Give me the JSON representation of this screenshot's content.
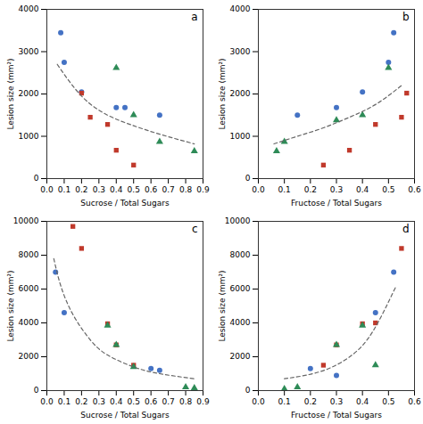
{
  "chart_data": [
    {
      "type": "scatter",
      "title": "a",
      "xlabel": "Sucrose / Total Sugars",
      "ylabel": "Lesion size (mm²)",
      "xlim": [
        0.0,
        0.9
      ],
      "ylim": [
        0,
        4000
      ],
      "xticks": [
        {
          "value": 0.0,
          "label": "0.0"
        },
        0.1,
        0.2,
        0.3,
        0.4,
        0.5,
        0.6,
        0.7,
        0.8,
        0.9
      ],
      "yticks": [
        0,
        1000,
        2000,
        3000,
        4000
      ],
      "grid": false,
      "series": [
        {
          "type": "scatter",
          "color": "#4472c4",
          "marker": "circle",
          "x": [
            0.08,
            0.1,
            0.2,
            0.4,
            0.45,
            0.65
          ],
          "values": [
            3450,
            2750,
            2050,
            1680,
            1680,
            1500
          ]
        },
        {
          "type": "scatter",
          "color": "#c0392b",
          "marker": "square",
          "x": [
            0.2,
            0.25,
            0.35,
            0.4,
            0.5
          ],
          "values": [
            2020,
            1450,
            1280,
            670,
            320
          ]
        },
        {
          "type": "scatter",
          "color": "#2e8b57",
          "marker": "triangle",
          "x": [
            0.4,
            0.5,
            0.65,
            0.85
          ],
          "values": [
            2620,
            1500,
            870,
            650
          ]
        },
        {
          "type": "line",
          "color": "#666666",
          "line_style": "dashed",
          "x": [
            0.06,
            0.2,
            0.35,
            0.5,
            0.65,
            0.85
          ],
          "values": [
            2700,
            1950,
            1500,
            1250,
            1050,
            820
          ]
        }
      ]
    },
    {
      "type": "scatter",
      "title": "b",
      "xlabel": "Fructose / Total Sugars",
      "ylabel": "Lesion size (mm²)",
      "xlim": [
        0.0,
        0.6
      ],
      "ylim": [
        0,
        4000
      ],
      "xticks": [
        {
          "value": 0.0,
          "label": "0.0"
        },
        0.1,
        0.2,
        0.3,
        0.4,
        0.5,
        0.6
      ],
      "yticks": [
        0,
        1000,
        2000,
        3000,
        4000
      ],
      "grid": false,
      "series": [
        {
          "type": "scatter",
          "color": "#4472c4",
          "marker": "circle",
          "x": [
            0.15,
            0.3,
            0.4,
            0.5,
            0.52
          ],
          "values": [
            1500,
            1680,
            2050,
            2750,
            3450
          ]
        },
        {
          "type": "scatter",
          "color": "#c0392b",
          "marker": "square",
          "x": [
            0.25,
            0.35,
            0.45,
            0.55,
            0.57
          ],
          "values": [
            320,
            670,
            1280,
            1450,
            2020
          ]
        },
        {
          "type": "scatter",
          "color": "#2e8b57",
          "marker": "triangle",
          "x": [
            0.07,
            0.1,
            0.3,
            0.4,
            0.5
          ],
          "values": [
            650,
            870,
            1380,
            1500,
            2620
          ]
        },
        {
          "type": "line",
          "color": "#666666",
          "line_style": "dashed",
          "x": [
            0.06,
            0.15,
            0.25,
            0.35,
            0.45,
            0.55
          ],
          "values": [
            820,
            1000,
            1200,
            1450,
            1750,
            2200
          ]
        }
      ]
    },
    {
      "type": "scatter",
      "title": "c",
      "xlabel": "Sucrose / Total Sugars",
      "ylabel": "Lesion size (mm²)",
      "xlim": [
        0.0,
        0.9
      ],
      "ylim": [
        0,
        10000
      ],
      "xticks": [
        {
          "value": 0.0,
          "label": "0.0"
        },
        0.1,
        0.2,
        0.3,
        0.4,
        0.5,
        0.6,
        0.7,
        0.8,
        0.9
      ],
      "yticks": [
        0,
        2000,
        4000,
        6000,
        8000,
        10000
      ],
      "grid": false,
      "series": [
        {
          "type": "scatter",
          "color": "#4472c4",
          "marker": "circle",
          "x": [
            0.05,
            0.1,
            0.6,
            0.65
          ],
          "values": [
            7000,
            4600,
            1300,
            1200
          ]
        },
        {
          "type": "scatter",
          "color": "#c0392b",
          "marker": "square",
          "x": [
            0.15,
            0.2,
            0.35,
            0.4,
            0.5
          ],
          "values": [
            9700,
            8400,
            3950,
            2700,
            1500
          ]
        },
        {
          "type": "scatter",
          "color": "#2e8b57",
          "marker": "triangle",
          "x": [
            0.35,
            0.4,
            0.5,
            0.8,
            0.85
          ],
          "values": [
            3850,
            2700,
            1400,
            200,
            150
          ]
        },
        {
          "type": "line",
          "color": "#666666",
          "line_style": "dashed",
          "x": [
            0.04,
            0.08,
            0.15,
            0.25,
            0.35,
            0.5,
            0.65,
            0.85
          ],
          "values": [
            7800,
            6200,
            4500,
            3000,
            2100,
            1400,
            1000,
            700
          ]
        }
      ]
    },
    {
      "type": "scatter",
      "title": "d",
      "xlabel": "Fructose / Total Sugars",
      "ylabel": "Lesion size (mm²)",
      "xlim": [
        0.0,
        0.6
      ],
      "ylim": [
        0,
        10000
      ],
      "xticks": [
        {
          "value": 0.0,
          "label": "0.0"
        },
        0.1,
        0.2,
        0.3,
        0.4,
        0.5,
        0.6
      ],
      "yticks": [
        0,
        2000,
        4000,
        6000,
        8000,
        10000
      ],
      "grid": false,
      "series": [
        {
          "type": "scatter",
          "color": "#4472c4",
          "marker": "circle",
          "x": [
            0.2,
            0.3,
            0.45,
            0.52
          ],
          "values": [
            1300,
            900,
            4600,
            7000
          ]
        },
        {
          "type": "scatter",
          "color": "#c0392b",
          "marker": "square",
          "x": [
            0.25,
            0.3,
            0.4,
            0.45,
            0.55
          ],
          "values": [
            1500,
            2700,
            3950,
            4000,
            8400
          ]
        },
        {
          "type": "scatter",
          "color": "#2e8b57",
          "marker": "triangle",
          "x": [
            0.1,
            0.15,
            0.3,
            0.4,
            0.45
          ],
          "values": [
            100,
            200,
            2700,
            3850,
            1500
          ]
        },
        {
          "type": "line",
          "color": "#666666",
          "line_style": "dashed",
          "x": [
            0.1,
            0.18,
            0.27,
            0.36,
            0.44,
            0.53
          ],
          "values": [
            700,
            900,
            1300,
            2100,
            3500,
            6200
          ]
        }
      ]
    }
  ]
}
